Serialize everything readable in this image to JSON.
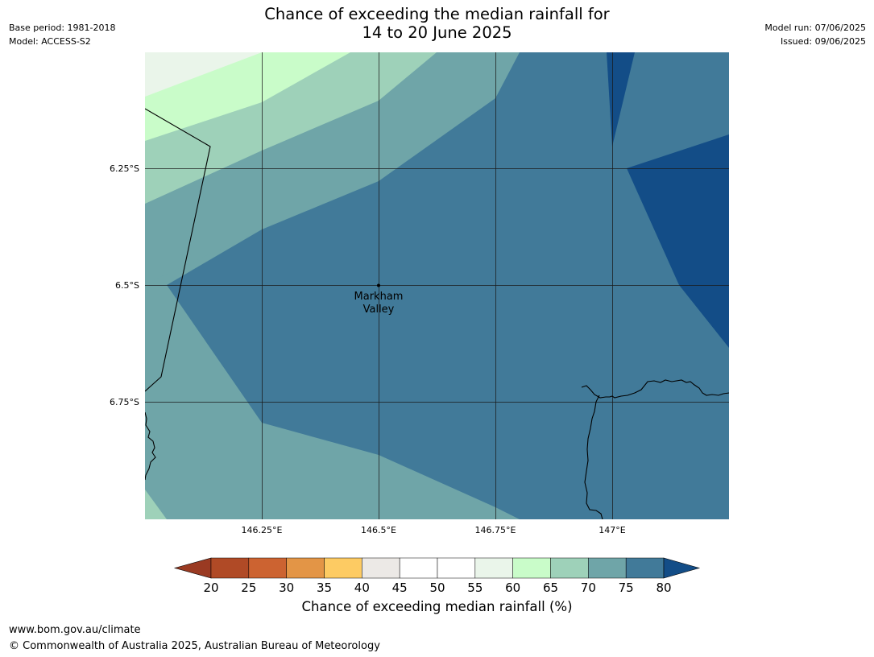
{
  "title": {
    "line1": "Chance of exceeding the median rainfall for",
    "line2": "14 to 20 June 2025"
  },
  "meta_left": {
    "base_period": "Base period: 1981-2018",
    "model": "Model: ACCESS-S2"
  },
  "meta_right": {
    "model_run": "Model run: 07/06/2025",
    "issued": "Issued: 09/06/2025"
  },
  "map": {
    "lat_labels": [
      "6.25°S",
      "6.5°S",
      "6.75°S"
    ],
    "lon_labels": [
      "146.25°E",
      "146.5°E",
      "146.75°E",
      "147°E"
    ],
    "place": {
      "line1": "Markham",
      "line2": "Valley"
    }
  },
  "colorbar": {
    "title": "Chance of exceeding median rainfall (%)",
    "ticks": [
      "20",
      "25",
      "30",
      "35",
      "40",
      "45",
      "50",
      "55",
      "60",
      "65",
      "70",
      "75",
      "80"
    ],
    "under_color": "#9a3a22",
    "over_color": "#134d87",
    "bin_colors": [
      "#b04a26",
      "#cc6331",
      "#e39546",
      "#fdcb63",
      "#ece9e6",
      "#ffffff",
      "#ffffff",
      "#eaf5ea",
      "#c9fcc9",
      "#9ed1b9",
      "#6fa5a8",
      "#417a99"
    ]
  },
  "colors": {
    "band_55_60": "#eaf5ea",
    "band_60_65": "#c9fcc9",
    "band_65_70": "#9ed1b9",
    "band_70_75": "#6fa5a8",
    "band_75_80": "#417a99",
    "band_above_80": "#134d87"
  },
  "footer": {
    "url": "www.bom.gov.au/climate",
    "copyright": "© Commonwealth of Australia 2025, Australian Bureau of Meteorology"
  }
}
